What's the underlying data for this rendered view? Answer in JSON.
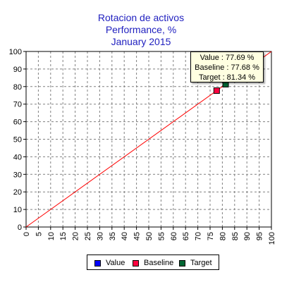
{
  "chart_data": {
    "type": "scatter",
    "title": [
      "Rotacion de activos",
      "Performance, %",
      "January 2015"
    ],
    "xlabel": "",
    "ylabel": "",
    "xlim": [
      0,
      100
    ],
    "ylim": [
      0,
      100
    ],
    "x_ticks": [
      "0",
      "5",
      "10",
      "15",
      "20",
      "25",
      "30",
      "35",
      "40",
      "45",
      "50",
      "55",
      "60",
      "65",
      "70",
      "75",
      "80",
      "85",
      "90",
      "95",
      "100"
    ],
    "y_ticks": [
      "0",
      "10",
      "20",
      "30",
      "40",
      "50",
      "60",
      "70",
      "80",
      "90",
      "100"
    ],
    "grid": true,
    "reference_line": {
      "from": [
        0,
        0
      ],
      "to": [
        100,
        100
      ],
      "color": "#ff0000"
    },
    "series": [
      {
        "name": "Value",
        "x": [],
        "y": [],
        "color": "#0000ff"
      },
      {
        "name": "Baseline",
        "x": [
          77.68
        ],
        "y": [
          77.68
        ],
        "color": "#ff0040"
      },
      {
        "name": "Target",
        "x": [
          81.34
        ],
        "y": [
          81.34
        ],
        "color": "#006633"
      }
    ],
    "legend": {
      "position": "bottom",
      "items": [
        "Value",
        "Baseline",
        "Target"
      ]
    },
    "tooltip": {
      "value": "Value : 77.69 %",
      "baseline": "Baseline : 77.68 %",
      "target": "Target : 81.34 %"
    }
  }
}
